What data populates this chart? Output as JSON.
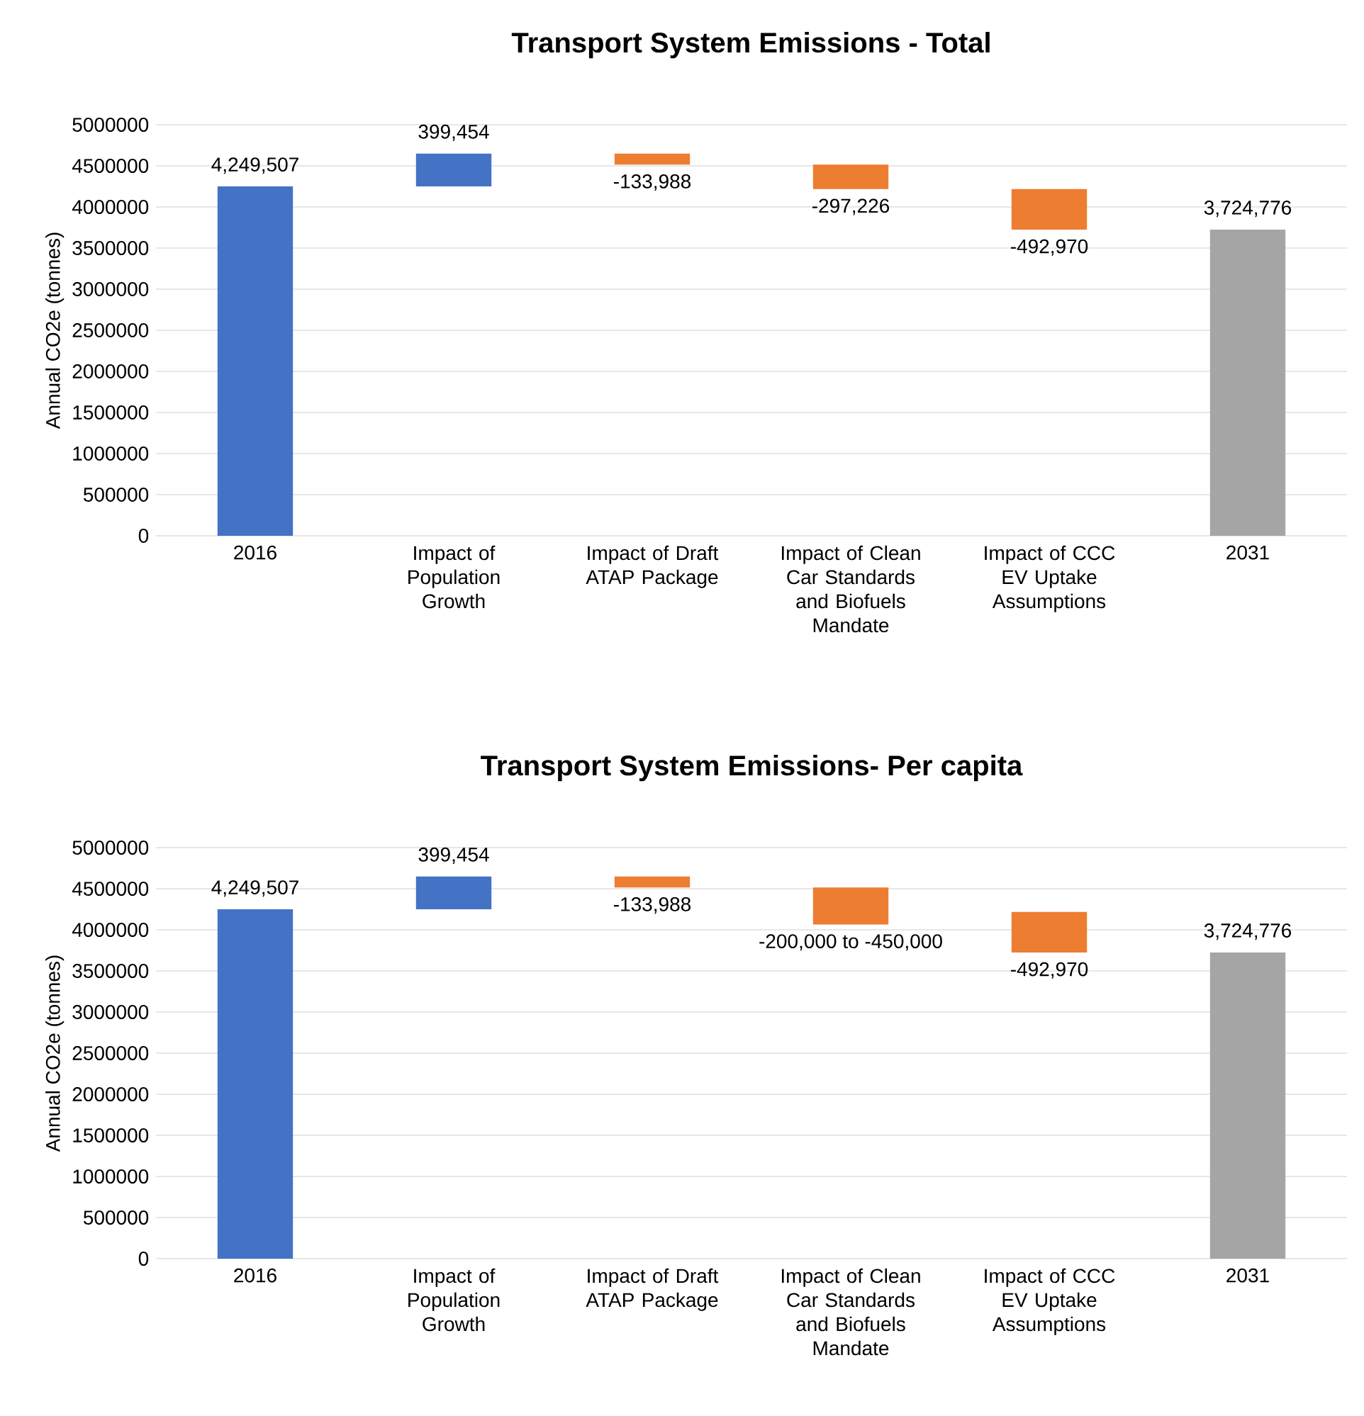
{
  "chart_data": [
    {
      "type": "bar",
      "title": "Transport System Emissions - Total",
      "ylabel": "Annual CO2e (tonnes)",
      "categories": [
        "2016",
        "Impact of Population Growth",
        "Impact of Draft ATAP Package",
        "Impact of Clean Car Standards and Biofuels Mandate",
        "Impact of CCC EV Uptake Assumptions",
        "2031"
      ],
      "values": [
        4249507,
        399454,
        -133988,
        -297226,
        -492970,
        3724776
      ],
      "base": [
        0,
        4249507,
        4648961,
        4514973,
        4217747,
        0
      ],
      "colors": [
        "#4472c4",
        "#4472c4",
        "#ed7d31",
        "#ed7d31",
        "#ed7d31",
        "#a5a5a5"
      ],
      "value_labels": [
        "4,249,507",
        "399,454",
        "-133,988",
        "-297,226",
        "-492,970",
        "3,724,776"
      ],
      "ylim": [
        0,
        5000000
      ],
      "yticks": [
        0,
        500000,
        1000000,
        1500000,
        2000000,
        2500000,
        3000000,
        3500000,
        4000000,
        4500000,
        5000000
      ],
      "grid": "y"
    },
    {
      "type": "bar",
      "title": "Transport System Emissions- Per capita",
      "ylabel": "Annual CO2e (tonnes)",
      "categories": [
        "2016",
        "Impact of Population Growth",
        "Impact of Draft ATAP Package",
        "Impact of Clean Car Standards and Biofuels Mandate",
        "Impact of CCC EV Uptake Assumptions",
        "2031"
      ],
      "values": [
        4249507,
        399454,
        -133988,
        -450000,
        -492970,
        3724776
      ],
      "base": [
        0,
        4249507,
        4648961,
        4514973,
        4217747,
        0
      ],
      "colors": [
        "#4472c4",
        "#4472c4",
        "#ed7d31",
        "#ed7d31",
        "#ed7d31",
        "#a5a5a5"
      ],
      "value_labels": [
        "4,249,507",
        "399,454",
        "-133,988",
        "-200,000 to -450,000",
        "-492,970",
        "3,724,776"
      ],
      "ylim": [
        0,
        5000000
      ],
      "yticks": [
        0,
        500000,
        1000000,
        1500000,
        2000000,
        2500000,
        3000000,
        3500000,
        4000000,
        4500000,
        5000000
      ],
      "grid": "y"
    }
  ]
}
